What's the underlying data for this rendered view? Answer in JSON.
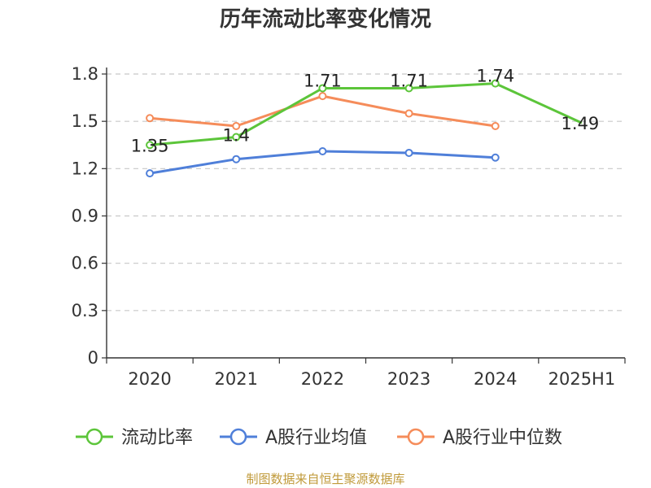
{
  "chart_data": {
    "type": "line",
    "title": "历年流动比率变化情况",
    "categories": [
      "2020",
      "2021",
      "2022",
      "2023",
      "2024",
      "2025H1"
    ],
    "yticks": [
      "0",
      "0.3",
      "0.6",
      "0.9",
      "1.2",
      "1.5",
      "1.8"
    ],
    "ylim": [
      0,
      1.8
    ],
    "grid": true,
    "legend_position": "bottom",
    "series": [
      {
        "name": "流动比率",
        "color": "#5cc53a",
        "values": [
          1.35,
          1.4,
          1.71,
          1.71,
          1.74,
          1.49
        ],
        "labels": [
          "1.35",
          "1.4",
          "1.71",
          "1.71",
          "1.74",
          "1.49"
        ]
      },
      {
        "name": "A股行业均值",
        "color": "#4f7fd9",
        "values": [
          1.17,
          1.26,
          1.31,
          1.3,
          1.27,
          null
        ]
      },
      {
        "name": "A股行业中位数",
        "color": "#f58c5a",
        "values": [
          1.52,
          1.47,
          1.66,
          1.55,
          1.47,
          null
        ]
      }
    ],
    "source": "制图数据来自恒生聚源数据库"
  }
}
